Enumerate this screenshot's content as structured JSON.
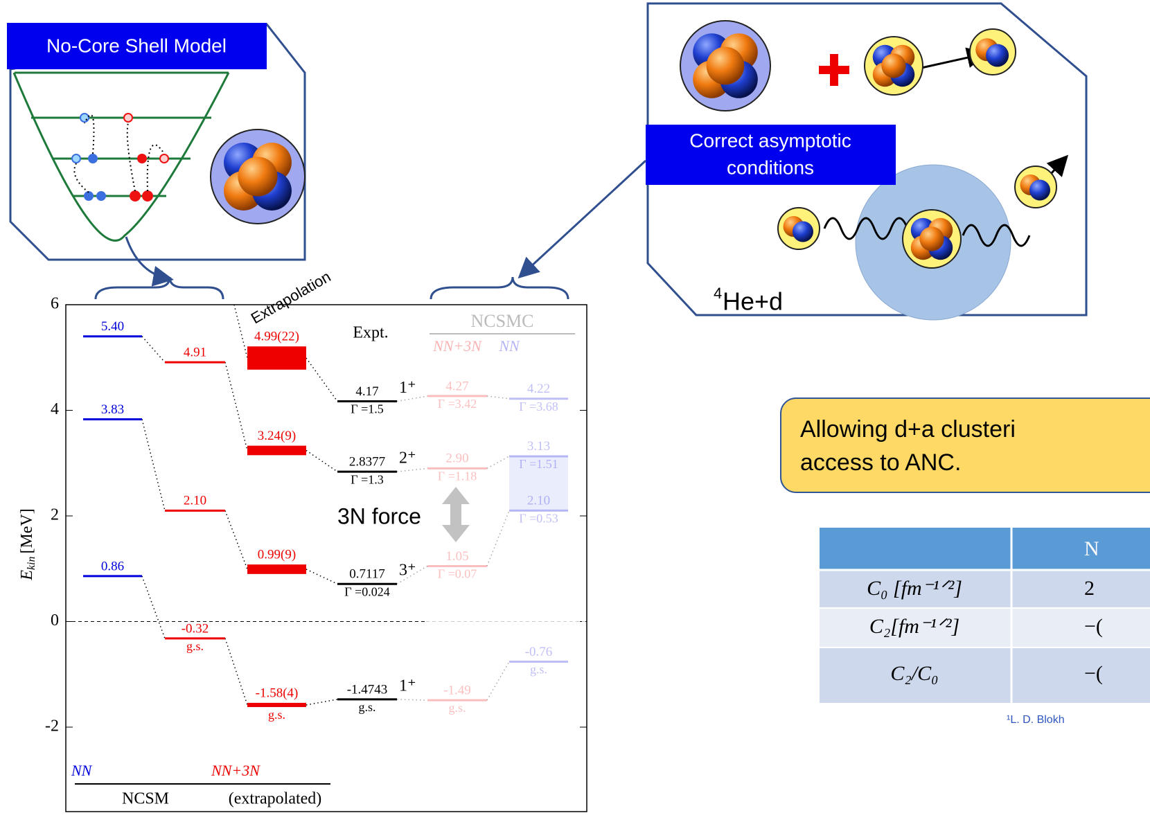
{
  "left_panel": {
    "label": "No-Core Shell Model"
  },
  "right_panel": {
    "label_lines": [
      "Correct asymptotic",
      "conditions"
    ],
    "reaction_mass": "4",
    "reaction": "He+d"
  },
  "callout": {
    "lines": [
      "Allowing d+a clusteri",
      "access to ANC."
    ]
  },
  "table": {
    "header": [
      "N"
    ],
    "rows": [
      [
        "C₀ [fm⁻¹ᐟ²]",
        "2"
      ],
      [
        "C₂[fm⁻¹ᐟ²]",
        "−("
      ],
      [
        "C₂/C₀",
        "−("
      ]
    ]
  },
  "footnote": "¹L. D. Blokh",
  "level_diagram": {
    "ylim": [
      -3.6,
      6
    ],
    "yticks": [
      6,
      4,
      2,
      0,
      -2
    ],
    "y_label": "E",
    "y_label_sub": "kin",
    "y_label_unit": "[MeV]",
    "extrapolation_label": "Extrapolation",
    "force_label": "3N force",
    "top_labels": {
      "expt": "Expt.",
      "method": "NCSMC",
      "nn3n": "NN+3N",
      "nn": "NN"
    },
    "bottom_labels": {
      "nn": "NN",
      "nn3n": "NN+3N",
      "method": "NCSM",
      "extrapolated": "(extrapolated)"
    },
    "columns": [
      {
        "color": "#0000dd",
        "opacity": 1,
        "values": [
          5.4,
          3.83,
          0.86
        ],
        "value_labels": [
          "5.40",
          "3.83",
          "0.86"
        ]
      },
      {
        "color": "#ee0000",
        "opacity": 1,
        "values": [
          4.91,
          2.1,
          -0.32
        ],
        "value_labels": [
          "4.91",
          "2.10",
          "-0.32"
        ],
        "notes": [
          null,
          null,
          "g.s."
        ]
      },
      {
        "color": "#ee0000",
        "opacity": 1,
        "values": [
          4.99,
          3.24,
          0.99,
          -1.58
        ],
        "errors": [
          0.22,
          0.09,
          0.09,
          0.04
        ],
        "value_labels": [
          "4.99(22)",
          "3.24(9)",
          "0.99(9)",
          "-1.58(4)"
        ],
        "notes": [
          null,
          null,
          null,
          "g.s."
        ]
      },
      {
        "color": "#000000",
        "opacity": 1,
        "values": [
          4.17,
          2.8377,
          0.7117,
          -1.4743
        ],
        "value_labels": [
          "4.17",
          "2.8377",
          "0.7117",
          "-1.4743"
        ],
        "notes": [
          "Γ =1.5",
          "Γ =1.3",
          "Γ =0.024",
          "g.s."
        ],
        "spins": [
          "1⁺",
          "2⁺",
          "3⁺",
          "1⁺"
        ]
      },
      {
        "color": "#ee0000",
        "opacity": 0.25,
        "values": [
          4.27,
          2.9,
          1.05,
          -1.49
        ],
        "value_labels": [
          "4.27",
          "2.90",
          "1.05",
          "-1.49"
        ],
        "notes": [
          "Γ =3.42",
          "Γ =1.18",
          "Γ =0.07",
          "g.s."
        ]
      },
      {
        "color": "#0000dd",
        "opacity": 0.25,
        "values": [
          4.22,
          3.13,
          2.1,
          -0.76
        ],
        "value_labels": [
          "4.22",
          "3.13",
          "2.10",
          "-0.76"
        ],
        "notes": [
          "Γ =3.68",
          "Γ =1.51",
          "Γ =0.53",
          "g.s."
        ]
      }
    ]
  }
}
